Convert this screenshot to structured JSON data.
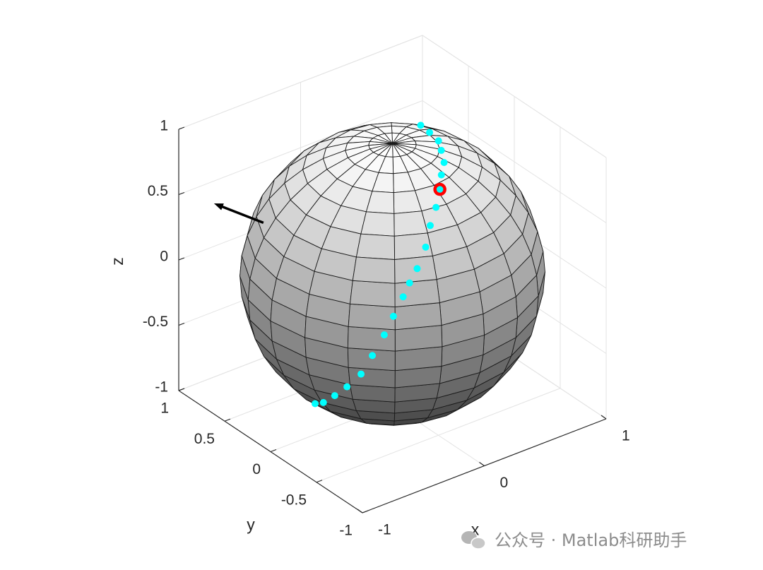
{
  "chart_data": {
    "type": "surface3d",
    "xlabel": "x",
    "ylabel": "y",
    "zlabel": "z",
    "xlim": [
      -1,
      1
    ],
    "ylim": [
      -1,
      1
    ],
    "zlim": [
      -1,
      1
    ],
    "xticks": [
      -1,
      0,
      1
    ],
    "yticks": [
      -1,
      -0.5,
      0,
      0.5,
      1
    ],
    "zticks": [
      -1,
      -0.5,
      0,
      0.5,
      1
    ],
    "grid": true,
    "sphere": {
      "resolution": 20,
      "colormap": [
        "#303030",
        "#ffffff"
      ],
      "edge_color": "#1a1a1a"
    },
    "trajectory": {
      "color": "#00ffff",
      "x": [
        0.39,
        0.35,
        0.31,
        0.25,
        0.19,
        0.1,
        0.02,
        -0.08,
        -0.18,
        -0.27,
        -0.37,
        -0.44,
        -0.5,
        -0.58,
        -0.64,
        -0.7,
        -0.74,
        -0.78,
        -0.79,
        -0.77,
        -0.71
      ],
      "y": [
        0.21,
        0.06,
        -0.09,
        -0.2,
        -0.31,
        -0.4,
        -0.49,
        -0.58,
        -0.65,
        -0.72,
        -0.76,
        -0.77,
        -0.78,
        -0.78,
        -0.76,
        -0.71,
        -0.64,
        -0.54,
        -0.42,
        -0.27,
        -0.1
      ],
      "z": [
        0.9,
        0.93,
        0.95,
        0.95,
        0.93,
        0.91,
        0.87,
        0.81,
        0.74,
        0.64,
        0.53,
        0.45,
        0.37,
        0.25,
        0.12,
        -0.04,
        -0.2,
        -0.33,
        -0.45,
        -0.58,
        -0.69
      ]
    },
    "marker": {
      "color": "#ff0000",
      "x": 0.02,
      "y": -0.49,
      "z": 0.87
    },
    "arrow": {
      "color": "#000000",
      "x": -0.78,
      "y": 0.37,
      "z": 0.5,
      "u": -0.3,
      "v": 0.14,
      "w": 0.19
    }
  },
  "watermark": "公众号 · Matlab科研助手"
}
